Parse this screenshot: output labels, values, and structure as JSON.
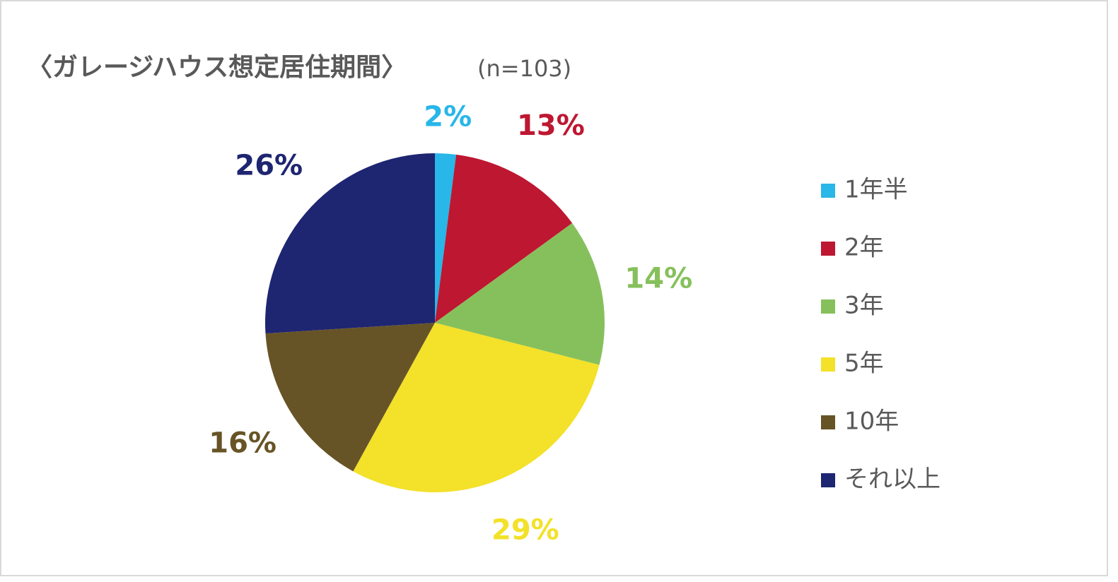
{
  "chart_data": {
    "type": "pie",
    "title": "〈ガレージハウス想定居住期間〉",
    "subtitle": "(n=103)",
    "categories": [
      "1年半",
      "2年",
      "3年",
      "5年",
      "10年",
      "それ以上"
    ],
    "values": [
      2,
      13,
      14,
      29,
      16,
      26
    ],
    "value_labels": [
      "2%",
      "13%",
      "14%",
      "29%",
      "16%",
      "26%"
    ],
    "colors": [
      "#29b6e8",
      "#be1731",
      "#86c05c",
      "#f3e12a",
      "#675426",
      "#1e2571"
    ],
    "legend": "right"
  }
}
